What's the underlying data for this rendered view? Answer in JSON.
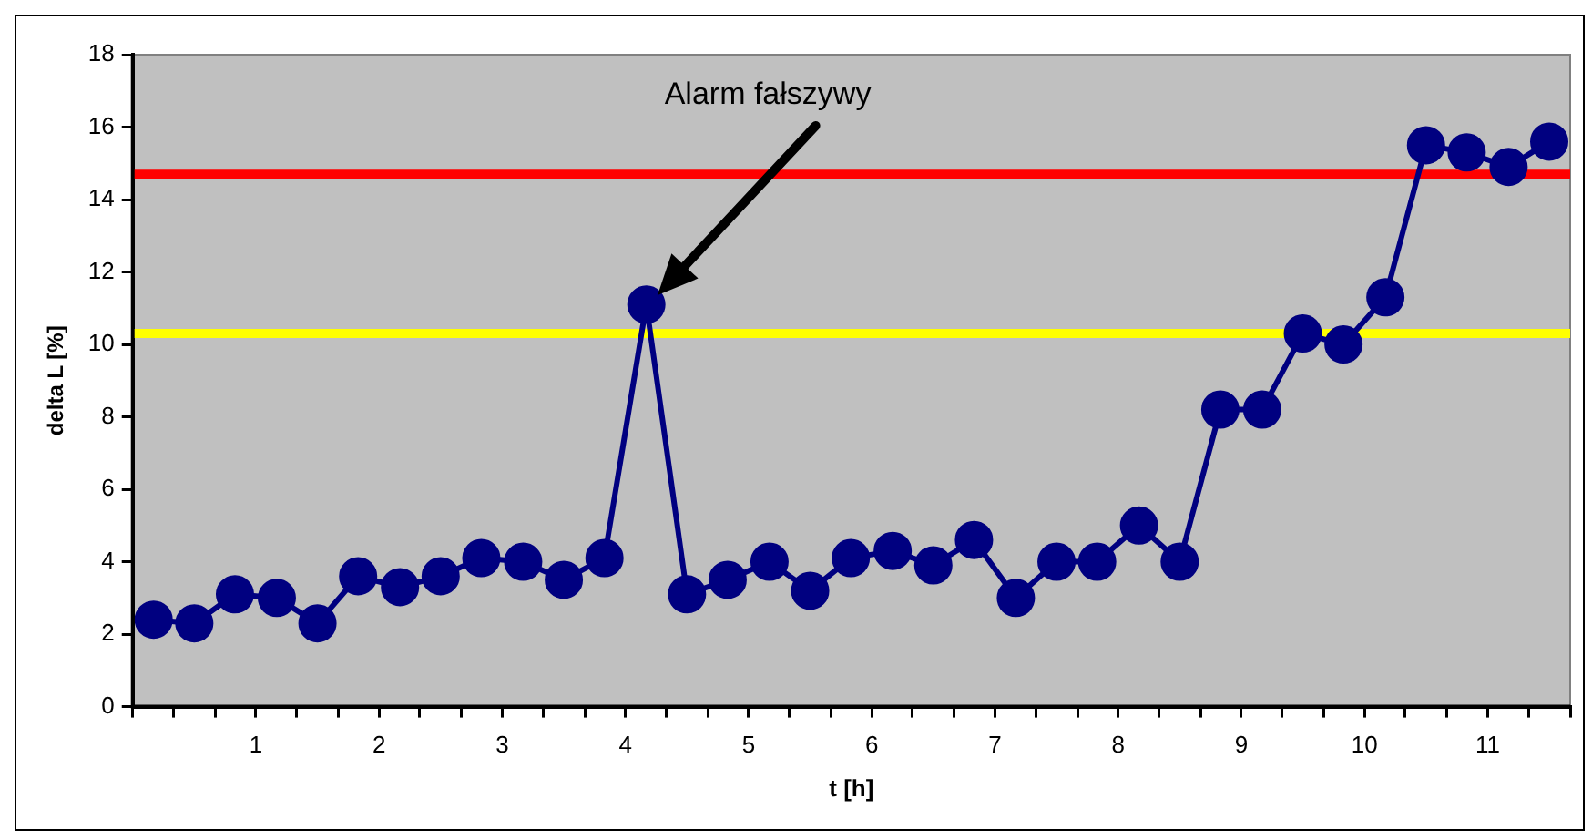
{
  "chart_data": {
    "type": "line",
    "xlabel": "t [h]",
    "ylabel": "delta L [%]",
    "x": [
      0.17,
      0.5,
      0.83,
      1.17,
      1.5,
      1.83,
      2.17,
      2.5,
      2.83,
      3.17,
      3.5,
      3.83,
      4.17,
      4.5,
      4.83,
      5.17,
      5.5,
      5.83,
      6.17,
      6.5,
      6.83,
      7.17,
      7.5,
      7.83,
      8.17,
      8.5,
      8.83,
      9.17,
      9.5,
      9.83,
      10.17,
      10.5,
      10.83,
      11.17,
      11.5
    ],
    "series": [
      {
        "color": "#000080",
        "values": [
          2.4,
          2.3,
          3.1,
          3.0,
          2.3,
          3.6,
          3.3,
          3.6,
          4.1,
          4.0,
          3.5,
          4.1,
          11.1,
          3.1,
          3.5,
          4.0,
          3.2,
          4.1,
          4.3,
          3.9,
          4.6,
          3.0,
          4.0,
          4.0,
          5.0,
          4.0,
          8.2,
          8.2,
          10.3,
          10.0,
          11.3,
          15.5,
          15.3,
          14.9,
          15.6
        ]
      }
    ],
    "xlim": [
      0,
      11.67
    ],
    "xticks": [
      {
        "value": 0,
        "label": null
      },
      {
        "value": 0.33,
        "label": null
      },
      {
        "value": 0.67,
        "label": null
      },
      1,
      {
        "value": 1.33,
        "label": null
      },
      {
        "value": 1.67,
        "label": null
      },
      2,
      {
        "value": 2.33,
        "label": null
      },
      {
        "value": 2.67,
        "label": null
      },
      3,
      {
        "value": 3.33,
        "label": null
      },
      {
        "value": 3.67,
        "label": null
      },
      4,
      {
        "value": 4.33,
        "label": null
      },
      {
        "value": 4.67,
        "label": null
      },
      5,
      {
        "value": 5.33,
        "label": null
      },
      {
        "value": 5.67,
        "label": null
      },
      6,
      {
        "value": 6.33,
        "label": null
      },
      {
        "value": 6.67,
        "label": null
      },
      7,
      {
        "value": 7.33,
        "label": null
      },
      {
        "value": 7.67,
        "label": null
      },
      8,
      {
        "value": 8.33,
        "label": null
      },
      {
        "value": 8.67,
        "label": null
      },
      9,
      {
        "value": 9.33,
        "label": null
      },
      {
        "value": 9.67,
        "label": null
      },
      10,
      {
        "value": 10.33,
        "label": null
      },
      {
        "value": 10.67,
        "label": null
      },
      11,
      {
        "value": 11.33,
        "label": null
      },
      {
        "value": 11.67,
        "label": null
      }
    ],
    "ylim": [
      0,
      18
    ],
    "yticks": [
      0,
      2,
      4,
      6,
      8,
      10,
      12,
      14,
      16,
      18
    ],
    "ref_lines": [
      {
        "axis": "y",
        "value": 14.7,
        "color": "#ff0000"
      },
      {
        "axis": "y",
        "value": 10.3,
        "color": "#ffff00"
      }
    ],
    "annotations": [
      "Alarm fałszywy"
    ],
    "marker": "circle",
    "line_style": "solid",
    "grid": false,
    "legend": false
  }
}
